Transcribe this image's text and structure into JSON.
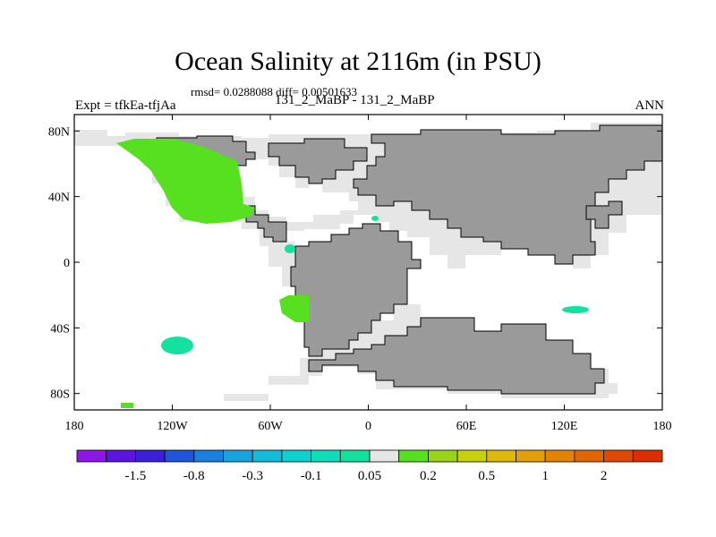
{
  "title": "Ocean Salinity at 2116m (in PSU)",
  "stats": "rmsd= 0.0288088 diff= 0.00501633",
  "left_label": "Expt = tfkEa-tfjAa",
  "center_label": "131_2_MaBP - 131_2_MaBP",
  "right_label": "ANN",
  "map": {
    "projection": "cylindrical equidistant",
    "lon_range": [
      -180,
      180
    ],
    "lat_range": [
      -90,
      90
    ],
    "y_ticks": [
      {
        "value": 80,
        "label": "80N"
      },
      {
        "value": 40,
        "label": "40N"
      },
      {
        "value": 0,
        "label": "0"
      },
      {
        "value": -40,
        "label": "40S"
      },
      {
        "value": -80,
        "label": "80S"
      }
    ],
    "x_ticks": [
      {
        "value": -180,
        "label": "180"
      },
      {
        "value": -120,
        "label": "120W"
      },
      {
        "value": -60,
        "label": "60W"
      },
      {
        "value": 0,
        "label": "0"
      },
      {
        "value": 60,
        "label": "60E"
      },
      {
        "value": 120,
        "label": "120E"
      },
      {
        "value": 180,
        "label": "180"
      }
    ],
    "colors": {
      "land": "#9a9a9a",
      "missing": "#e6e6e6",
      "background": "#ffffff"
    }
  },
  "colorbar": {
    "colors": [
      "#8c17e8",
      "#5a15e3",
      "#3b1fd9",
      "#1e55da",
      "#1b7fdd",
      "#17a4de",
      "#10bed8",
      "#0dd0cf",
      "#0fdcb8",
      "#13e29e",
      "#e6e6e6",
      "#57e01f",
      "#9bd315",
      "#c9d10c",
      "#dcba08",
      "#e1a005",
      "#e38400",
      "#e26600",
      "#e04a00",
      "#de2d00"
    ],
    "labels": [
      {
        "after_box": 2,
        "text": "-1.5"
      },
      {
        "after_box": 4,
        "text": "-0.8"
      },
      {
        "after_box": 6,
        "text": "-0.3"
      },
      {
        "after_box": 8,
        "text": "-0.1"
      },
      {
        "after_box": 10,
        "text": "0.05"
      },
      {
        "after_box": 12,
        "text": "0.2"
      },
      {
        "after_box": 14,
        "text": "0.5"
      },
      {
        "after_box": 16,
        "text": "1"
      },
      {
        "after_box": 18,
        "text": "2"
      }
    ]
  }
}
